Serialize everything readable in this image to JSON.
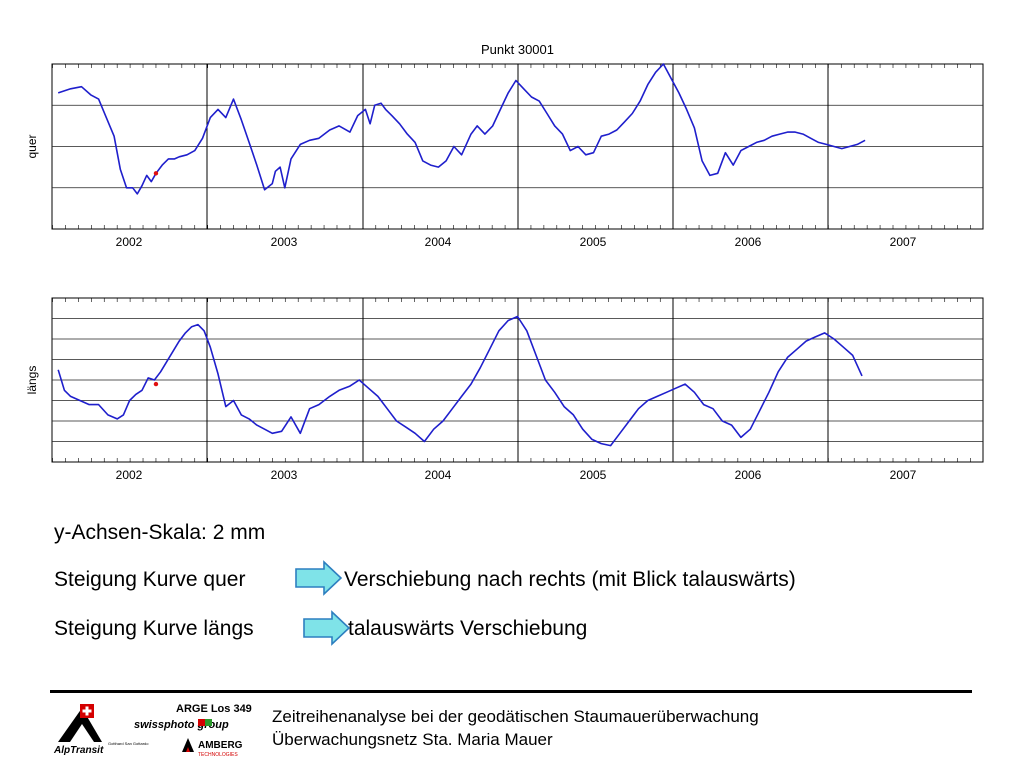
{
  "chart_data": [
    {
      "type": "line",
      "title": "Punkt 30001",
      "ylabel": "quer",
      "xlabel": "",
      "x_ticks": [
        "2002",
        "2003",
        "2004",
        "2005",
        "2006",
        "2007"
      ],
      "xlim": [
        2001.58,
        2007.58
      ],
      "ylim": [
        -4,
        4
      ],
      "y_grid_step": 2,
      "grid": true,
      "series": [
        {
          "color": "#1f1fcc",
          "x": [
            2001.62,
            2001.7,
            2001.77,
            2001.83,
            2001.88,
            2001.93,
            2001.98,
            2002.02,
            2002.06,
            2002.1,
            2002.13,
            2002.16,
            2002.19,
            2002.22,
            2002.25,
            2002.29,
            2002.33,
            2002.37,
            2002.4,
            2002.45,
            2002.5,
            2002.55,
            2002.6,
            2002.65,
            2002.7,
            2002.75,
            2002.8,
            2002.85,
            2002.9,
            2002.95,
            2003.0,
            2003.02,
            2003.05,
            2003.08,
            2003.12,
            2003.18,
            2003.24,
            2003.3,
            2003.37,
            2003.43,
            2003.5,
            2003.55,
            2003.6,
            2003.63,
            2003.66,
            2003.7,
            2003.73,
            2003.77,
            2003.82,
            2003.87,
            2003.92,
            2003.97,
            2004.02,
            2004.07,
            2004.12,
            2004.17,
            2004.22,
            2004.28,
            2004.32,
            2004.37,
            2004.42,
            2004.47,
            2004.52,
            2004.57,
            2004.62,
            2004.67,
            2004.72,
            2004.77,
            2004.82,
            2004.87,
            2004.92,
            2004.97,
            2005.02,
            2005.07,
            2005.12,
            2005.17,
            2005.22,
            2005.27,
            2005.32,
            2005.37,
            2005.42,
            2005.47,
            2005.52,
            2005.57,
            2005.62,
            2005.67,
            2005.72,
            2005.77,
            2005.82,
            2005.87,
            2005.92,
            2005.97,
            2006.02,
            2006.07,
            2006.12,
            2006.17,
            2006.22,
            2006.27,
            2006.32,
            2006.37,
            2006.42,
            2006.47,
            2006.52,
            2006.57,
            2006.62,
            2006.67,
            2006.72,
            2006.77,
            2006.82
          ],
          "y": [
            2.6,
            2.8,
            2.9,
            2.5,
            2.3,
            1.4,
            0.5,
            -1.1,
            -2.0,
            -2.0,
            -2.3,
            -1.9,
            -1.4,
            -1.7,
            -1.3,
            -0.9,
            -0.6,
            -0.6,
            -0.5,
            -0.4,
            -0.2,
            0.4,
            1.4,
            1.8,
            1.4,
            2.3,
            1.3,
            0.2,
            -0.9,
            -2.1,
            -1.8,
            -1.2,
            -1.0,
            -2.0,
            -0.6,
            0.1,
            0.3,
            0.4,
            0.8,
            1.0,
            0.7,
            1.5,
            1.8,
            1.1,
            2.0,
            2.1,
            1.8,
            1.5,
            1.1,
            0.6,
            0.2,
            -0.7,
            -0.9,
            -1.0,
            -0.7,
            0.0,
            -0.4,
            0.6,
            1.0,
            0.6,
            1.0,
            1.8,
            2.6,
            3.2,
            2.8,
            2.4,
            2.2,
            1.6,
            1.0,
            0.6,
            -0.2,
            0.0,
            -0.4,
            -0.3,
            0.5,
            0.6,
            0.8,
            1.2,
            1.6,
            2.2,
            3.0,
            3.6,
            4.0,
            3.3,
            2.6,
            1.8,
            0.9,
            -0.7,
            -1.4,
            -1.3,
            -0.3,
            -0.9,
            -0.2,
            0.0,
            0.2,
            0.3,
            0.5,
            0.6,
            0.7,
            0.7,
            0.6,
            0.4,
            0.2,
            0.1,
            0.0,
            -0.1,
            0.0,
            0.1,
            0.3
          ],
          "marker": {
            "x": 2002.25,
            "y": -1.3,
            "color": "#e01010"
          }
        }
      ]
    },
    {
      "type": "line",
      "title": "",
      "ylabel": "längs",
      "xlabel": "",
      "x_ticks": [
        "2002",
        "2003",
        "2004",
        "2005",
        "2006",
        "2007"
      ],
      "xlim": [
        2001.58,
        2007.58
      ],
      "ylim": [
        -4,
        4
      ],
      "y_grid_step": 1,
      "grid": true,
      "series": [
        {
          "color": "#1f1fcc",
          "x": [
            2001.62,
            2001.66,
            2001.7,
            2001.76,
            2001.82,
            2001.88,
            2001.94,
            2002.0,
            2002.04,
            2002.08,
            2002.12,
            2002.16,
            2002.2,
            2002.24,
            2002.28,
            2002.32,
            2002.36,
            2002.4,
            2002.44,
            2002.48,
            2002.52,
            2002.56,
            2002.6,
            2002.65,
            2002.7,
            2002.75,
            2002.8,
            2002.85,
            2002.9,
            2002.95,
            2003.0,
            2003.06,
            2003.12,
            2003.18,
            2003.24,
            2003.3,
            2003.37,
            2003.43,
            2003.5,
            2003.56,
            2003.62,
            2003.68,
            2003.74,
            2003.8,
            2003.86,
            2003.92,
            2003.98,
            2004.04,
            2004.1,
            2004.16,
            2004.22,
            2004.28,
            2004.34,
            2004.4,
            2004.46,
            2004.52,
            2004.58,
            2004.64,
            2004.7,
            2004.76,
            2004.82,
            2004.88,
            2004.94,
            2005.0,
            2005.06,
            2005.12,
            2005.18,
            2005.24,
            2005.3,
            2005.36,
            2005.42,
            2005.48,
            2005.54,
            2005.6,
            2005.66,
            2005.72,
            2005.78,
            2005.84,
            2005.9,
            2005.96,
            2006.02,
            2006.08,
            2006.14,
            2006.2,
            2006.26,
            2006.32,
            2006.38,
            2006.44,
            2006.5,
            2006.56,
            2006.62,
            2006.68,
            2006.74,
            2006.8
          ],
          "y": [
            0.5,
            -0.5,
            -0.8,
            -1.0,
            -1.2,
            -1.2,
            -1.7,
            -1.9,
            -1.7,
            -1.0,
            -0.7,
            -0.5,
            0.1,
            0.0,
            0.4,
            0.9,
            1.4,
            1.9,
            2.3,
            2.6,
            2.7,
            2.4,
            1.6,
            0.3,
            -1.3,
            -1.0,
            -1.7,
            -1.9,
            -2.2,
            -2.4,
            -2.6,
            -2.5,
            -1.8,
            -2.6,
            -1.4,
            -1.2,
            -0.8,
            -0.5,
            -0.3,
            0.0,
            -0.4,
            -0.8,
            -1.4,
            -2.0,
            -2.3,
            -2.6,
            -3.0,
            -2.4,
            -2.0,
            -1.4,
            -0.8,
            -0.2,
            0.6,
            1.5,
            2.4,
            2.9,
            3.1,
            2.4,
            1.2,
            0.0,
            -0.6,
            -1.3,
            -1.7,
            -2.4,
            -2.9,
            -3.1,
            -3.2,
            -2.6,
            -2.0,
            -1.4,
            -1.0,
            -0.8,
            -0.6,
            -0.4,
            -0.2,
            -0.6,
            -1.2,
            -1.4,
            -2.0,
            -2.2,
            -2.8,
            -2.4,
            -1.5,
            -0.6,
            0.4,
            1.1,
            1.5,
            1.9,
            2.1,
            2.3,
            2.0,
            1.6,
            1.2,
            0.2
          ],
          "marker": {
            "x": 2002.25,
            "y": -0.2,
            "color": "#e01010"
          }
        }
      ]
    }
  ],
  "notes": {
    "line1": "y-Achsen-Skala: 2 mm",
    "line2_left": "Steigung Kurve quer",
    "line2_right": "Verschiebung nach rechts (mit Blick talauswärts)",
    "line3_left": "Steigung Kurve längs",
    "line3_right": "talauswärts Verschiebung"
  },
  "footer": {
    "line1": "Zeitreihenanalyse bei der geodätischen Staumauerüberwachung",
    "line2": "Überwachungsnetz Sta. Maria Mauer"
  },
  "logos": {
    "alptransit": "AlpTransit",
    "alptransit_sub": "Gotthard San Gottardo",
    "arge": "ARGE Los 349",
    "swissphoto": "swissphoto group",
    "amberg": "AMBERG",
    "amberg_sub": "TECHNOLOGIES"
  },
  "colors": {
    "curve": "#1f1fcc",
    "marker": "#e01010",
    "arrow_fill": "#7fe3e8",
    "arrow_stroke": "#2d7fc0"
  }
}
